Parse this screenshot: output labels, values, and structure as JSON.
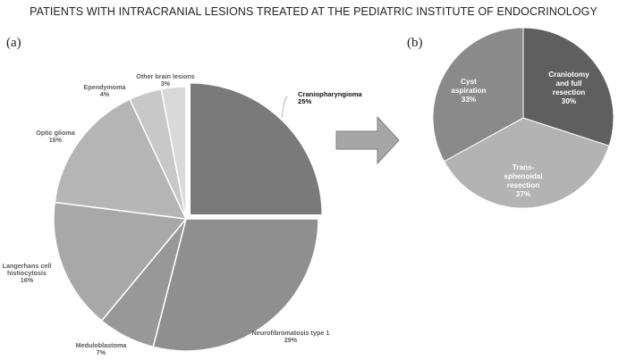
{
  "title": "PATIENTS WITH INTRACRANIAL LESIONS TREATED AT THE PEDIATRIC INSTITUTE OF ENDOCRINOLOGY",
  "panels": {
    "a": "(a)",
    "b": "(b)"
  },
  "colors": {
    "arrow_fill": "#a6a6a6",
    "arrow_stroke": "#7f7f7f"
  },
  "chart_data": [
    {
      "type": "pie",
      "panel": "(a)",
      "exploded": "Craniopharyngioma",
      "slices": [
        {
          "label": "Craniopharyngioma",
          "value": 25,
          "pct": "25%",
          "color": "#7a7a7a"
        },
        {
          "label": "Neurofibromatosis type 1",
          "value": 29,
          "pct": "29%",
          "color": "#8f8f8f"
        },
        {
          "label": "Meduloblastoma",
          "value": 7,
          "pct": "7%",
          "color": "#989898"
        },
        {
          "label": "Langerhans cell histiocytosis",
          "value": 16,
          "pct": "16%",
          "color": "#a8a8a8"
        },
        {
          "label": "Optic glioma",
          "value": 16,
          "pct": "16%",
          "color": "#b5b5b5"
        },
        {
          "label": "Ependymoma",
          "value": 4,
          "pct": "4%",
          "color": "#c8c8c8"
        },
        {
          "label": "Other brain lesions",
          "value": 3,
          "pct": "3%",
          "color": "#d9d9d9"
        }
      ]
    },
    {
      "type": "pie",
      "panel": "(b)",
      "slices": [
        {
          "label": "Craniotomy and full resection",
          "value": 30,
          "pct": "30%",
          "color": "#5f5f5f"
        },
        {
          "label": "Trans-sphenoidal resection",
          "value": 37,
          "pct": "37%",
          "color": "#b3b3b3"
        },
        {
          "label": "Cyst aspiration",
          "value": 33,
          "pct": "33%",
          "color": "#8a8a8a"
        }
      ]
    }
  ]
}
